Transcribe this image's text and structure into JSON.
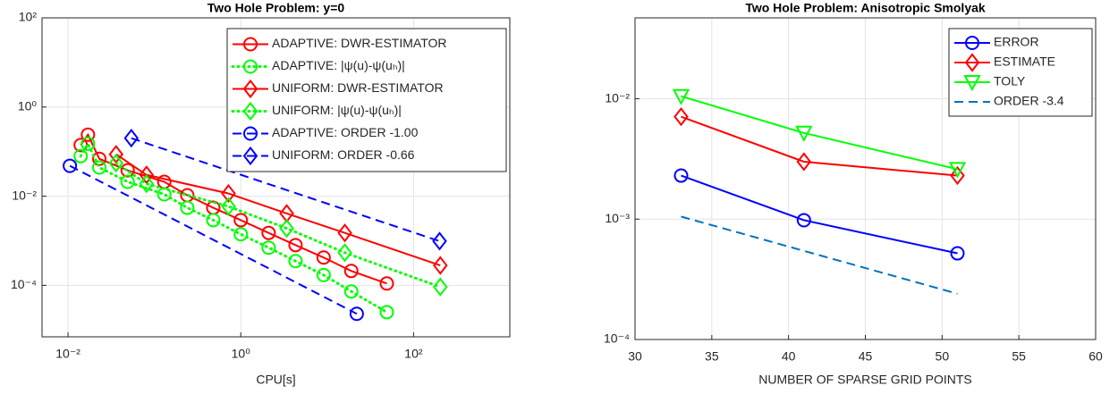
{
  "chart_data": [
    {
      "type": "line",
      "title": "Two Hole Problem: y=0",
      "xlabel": "CPU[s]",
      "xscale": "log",
      "yscale": "log",
      "grid": true,
      "legend": "upper right",
      "xlim": [
        0.005,
        1300
      ],
      "ylim": [
        7e-06,
        100
      ],
      "xticks": [
        {
          "value": 0.01,
          "label": "10⁻²"
        },
        {
          "value": 1,
          "label": "10⁰"
        },
        {
          "value": 100,
          "label": "10²"
        }
      ],
      "yticks": [
        {
          "value": 0.0001,
          "label": "10⁻⁴"
        },
        {
          "value": 0.01,
          "label": "10⁻²"
        },
        {
          "value": 1,
          "label": "10⁰"
        },
        {
          "value": 100,
          "label": "10²"
        }
      ],
      "series": [
        {
          "name": "ADAPTIVE: DWR-ESTIMATOR",
          "color": "#ff0000",
          "marker": "circle",
          "dash": "solid",
          "x": [
            0.014,
            0.017,
            0.023,
            0.049,
            0.13,
            0.24,
            0.48,
            1,
            2.1,
            4.3,
            9.1,
            19,
            49
          ],
          "values": [
            0.14,
            0.24,
            0.069,
            0.038,
            0.021,
            0.0105,
            0.0055,
            0.0029,
            0.0015,
            0.0008,
            0.00042,
            0.00021,
            0.00011
          ]
        },
        {
          "name": "ADAPTIVE: |ψ(u)-ψ(uₕ)|",
          "color": "#00ff00",
          "marker": "circle",
          "dash": "dotted",
          "x": [
            0.014,
            0.017,
            0.023,
            0.049,
            0.13,
            0.24,
            0.48,
            1,
            2.1,
            4.3,
            9.1,
            19,
            49
          ],
          "values": [
            0.079,
            0.15,
            0.044,
            0.021,
            0.011,
            0.0055,
            0.0029,
            0.0014,
            0.0007,
            0.00035,
            0.00017,
            7.3e-05,
            2.5e-05
          ]
        },
        {
          "name": "UNIFORM: DWR-ESTIMATOR",
          "color": "#ff0000",
          "marker": "diamond",
          "dash": "solid",
          "x": [
            0.036,
            0.081,
            0.72,
            3.4,
            16,
            204
          ],
          "values": [
            0.087,
            0.03,
            0.0115,
            0.0041,
            0.0015,
            0.00028
          ]
        },
        {
          "name": "UNIFORM: |ψ(u)-ψ(uₕ)|",
          "color": "#00ff00",
          "marker": "diamond",
          "dash": "dotted",
          "x": [
            0.036,
            0.081,
            0.72,
            3.4,
            16,
            204
          ],
          "values": [
            0.055,
            0.019,
            0.0059,
            0.0019,
            0.00054,
            9.2e-05
          ]
        },
        {
          "name": "ADAPTIVE: ORDER -1.00",
          "color": "#0000ff",
          "marker": "circle",
          "dash": "dashed",
          "x": [
            0.0105,
            22
          ],
          "values": [
            0.048,
            2.3e-05
          ]
        },
        {
          "name": "UNIFORM:  ORDER -0.66",
          "color": "#0000ff",
          "marker": "diamond",
          "dash": "dashed",
          "x": [
            0.054,
            200
          ],
          "values": [
            0.2,
            0.00098
          ]
        }
      ]
    },
    {
      "type": "line",
      "title": "Two Hole Problem: Anisotropic Smolyak",
      "xlabel": "NUMBER OF SPARSE GRID POINTS",
      "xscale": "linear",
      "yscale": "log",
      "grid": true,
      "legend": "upper right",
      "xlim": [
        30,
        60
      ],
      "ylim": [
        0.0001,
        0.047
      ],
      "xticks": [
        30,
        35,
        40,
        45,
        50,
        55,
        60
      ],
      "yticks": [
        {
          "value": 0.0001,
          "label": "10⁻⁴"
        },
        {
          "value": 0.001,
          "label": "10⁻³"
        },
        {
          "value": 0.01,
          "label": "10⁻²"
        }
      ],
      "series": [
        {
          "name": "ERROR",
          "color": "#0000ff",
          "marker": "circle",
          "dash": "solid",
          "x": [
            33,
            41,
            51
          ],
          "values": [
            0.0023,
            0.00098,
            0.00052
          ]
        },
        {
          "name": "ESTIMATE",
          "color": "#ff0000",
          "marker": "diamond",
          "dash": "solid",
          "x": [
            33,
            41,
            51
          ],
          "values": [
            0.0071,
            0.003,
            0.0023
          ]
        },
        {
          "name": "TOLY",
          "color": "#00ff00",
          "marker": "triangle-down",
          "dash": "solid",
          "x": [
            33,
            41,
            51
          ],
          "values": [
            0.0105,
            0.0052,
            0.0026
          ]
        },
        {
          "name": "ORDER -3.4",
          "color": "#0072bd",
          "dash": "dashed",
          "x": [
            33,
            51
          ],
          "values": [
            0.00105,
            0.00024
          ]
        }
      ]
    }
  ]
}
